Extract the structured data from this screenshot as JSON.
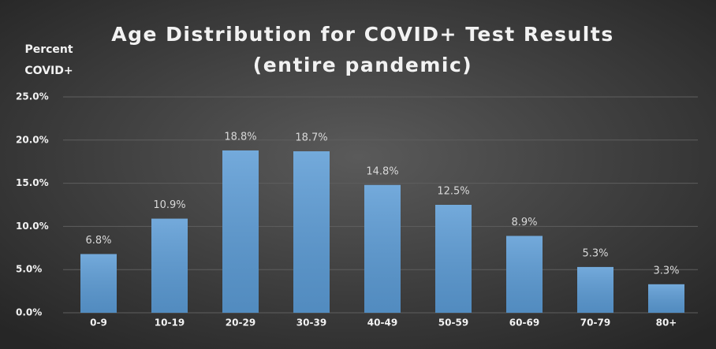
{
  "chart_data": {
    "type": "bar",
    "title": "Age Distribution for COVID+ Test Results",
    "subtitle": "(entire pandemic)",
    "ylabel": [
      "Percent",
      "COVID+"
    ],
    "categories": [
      "0-9",
      "10-19",
      "20-29",
      "30-39",
      "40-49",
      "50-59",
      "60-69",
      "70-79",
      "80+"
    ],
    "values": [
      6.8,
      10.9,
      18.8,
      18.7,
      14.8,
      12.5,
      8.9,
      5.3,
      3.3
    ],
    "value_labels": [
      "6.8%",
      "10.9%",
      "18.8%",
      "18.7%",
      "14.8%",
      "12.5%",
      "8.9%",
      "5.3%",
      "3.3%"
    ],
    "color": "#5b9bd5",
    "ylim": [
      0,
      25
    ],
    "yticks": [
      {
        "value": 0,
        "label": "0.0%"
      },
      {
        "value": 5,
        "label": "5.0%"
      },
      {
        "value": 10,
        "label": "10.0%"
      },
      {
        "value": 15,
        "label": "15.0%"
      },
      {
        "value": 20,
        "label": "20.0%"
      },
      {
        "value": 25,
        "label": "25.0%"
      }
    ],
    "grid": true
  }
}
